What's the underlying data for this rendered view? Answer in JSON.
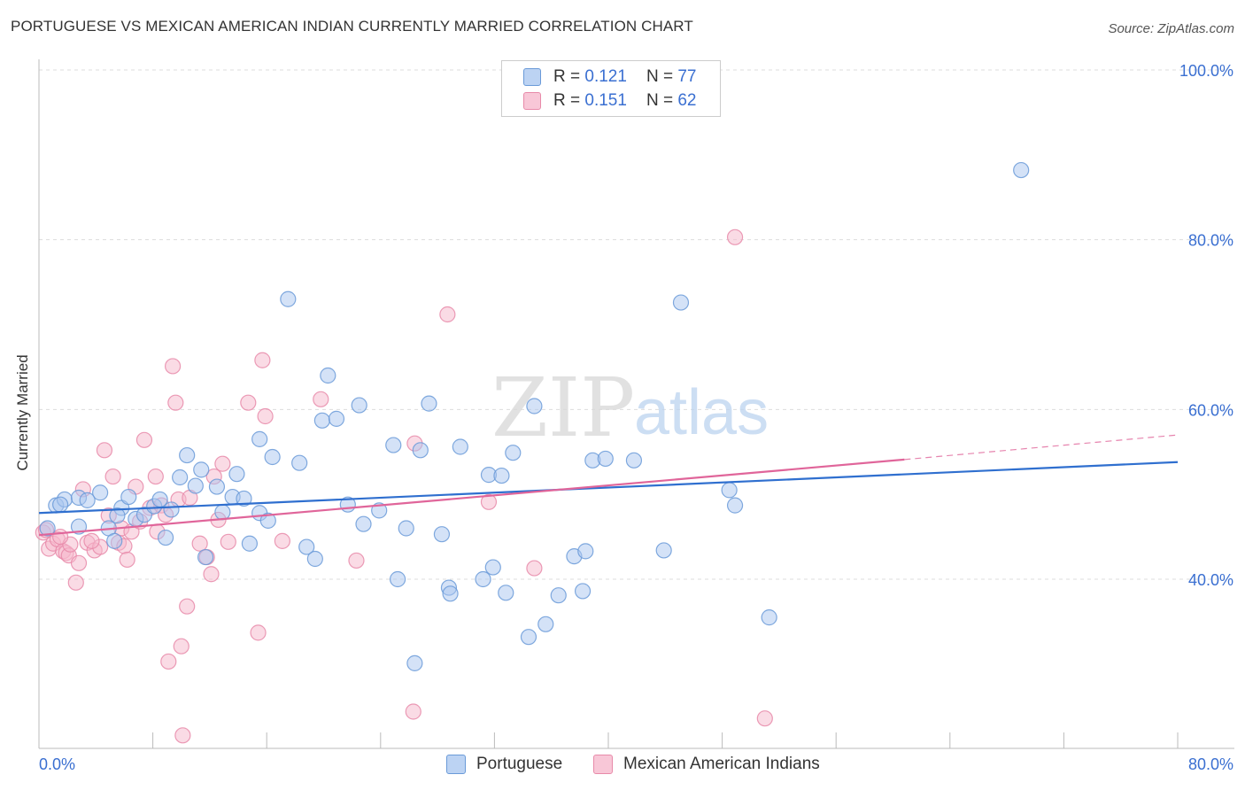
{
  "title": "PORTUGUESE VS MEXICAN AMERICAN INDIAN CURRENTLY MARRIED CORRELATION CHART",
  "source": "Source: ZipAtlas.com",
  "watermark": {
    "zip": "ZIP",
    "atlas": "atlas"
  },
  "legend": {
    "r_label": "R =",
    "n_label": "N =",
    "items": [
      {
        "r": "0.121",
        "n": "77"
      },
      {
        "r": "0.151",
        "n": "62"
      }
    ]
  },
  "colors": {
    "blue_fill": "#a9c6f0",
    "blue_stroke": "#6a9ad8",
    "blue_line": "#2f6fcf",
    "pink_fill": "#f6b8cc",
    "pink_stroke": "#e88aa9",
    "pink_line": "#e0659a",
    "tick_label": "#3a6fd1",
    "grid": "#dddddd"
  },
  "chart_data": {
    "type": "scatter",
    "title": "PORTUGUESE VS MEXICAN AMERICAN INDIAN CURRENTLY MARRIED CORRELATION CHART",
    "xlabel": "",
    "ylabel": "Currently Married",
    "xlim": [
      0,
      80
    ],
    "ylim": [
      20,
      100
    ],
    "x_tick_labels": [
      "0.0%",
      "80.0%"
    ],
    "y_ticks": [
      40,
      60,
      80,
      100
    ],
    "y_tick_labels": [
      "40.0%",
      "60.0%",
      "80.0%",
      "100.0%"
    ],
    "grid": true,
    "legend_position": "top-center",
    "series": [
      {
        "name": "Portuguese",
        "r": 0.121,
        "n": 77,
        "trend": {
          "x": [
            0,
            80
          ],
          "y": [
            47.8,
            53.8
          ]
        },
        "points": [
          [
            0.6,
            46
          ],
          [
            1.2,
            48.7
          ],
          [
            1.8,
            49.4
          ],
          [
            2.8,
            49.6
          ],
          [
            4.3,
            50.2
          ],
          [
            3.4,
            49.3
          ],
          [
            2.8,
            46.2
          ],
          [
            4.9,
            46
          ],
          [
            5.3,
            44.5
          ],
          [
            5.8,
            48.4
          ],
          [
            6.3,
            49.7
          ],
          [
            6.8,
            47.1
          ],
          [
            7.4,
            47.6
          ],
          [
            8.1,
            48.6
          ],
          [
            8.5,
            49.4
          ],
          [
            8.9,
            44.9
          ],
          [
            9.3,
            48.2
          ],
          [
            9.9,
            52
          ],
          [
            10.4,
            54.6
          ],
          [
            11,
            51
          ],
          [
            11.4,
            52.9
          ],
          [
            11.7,
            42.6
          ],
          [
            12.5,
            50.9
          ],
          [
            12.9,
            47.9
          ],
          [
            13.6,
            49.7
          ],
          [
            13.9,
            52.4
          ],
          [
            14.4,
            49.5
          ],
          [
            14.8,
            44.2
          ],
          [
            15.5,
            47.8
          ],
          [
            16.1,
            46.9
          ],
          [
            15.5,
            56.5
          ],
          [
            16.4,
            54.4
          ],
          [
            17.5,
            73
          ],
          [
            18.3,
            53.7
          ],
          [
            18.8,
            43.8
          ],
          [
            19.4,
            42.4
          ],
          [
            19.9,
            58.7
          ],
          [
            20.3,
            64
          ],
          [
            20.9,
            58.9
          ],
          [
            21.7,
            48.8
          ],
          [
            22.5,
            60.5
          ],
          [
            22.8,
            46.5
          ],
          [
            23.9,
            48.1
          ],
          [
            24.9,
            55.8
          ],
          [
            25.2,
            40
          ],
          [
            25.8,
            46
          ],
          [
            26.8,
            55.2
          ],
          [
            27.4,
            60.7
          ],
          [
            28.3,
            45.3
          ],
          [
            28.8,
            39
          ],
          [
            28.9,
            38.3
          ],
          [
            29.6,
            55.6
          ],
          [
            31.2,
            40
          ],
          [
            31.6,
            52.3
          ],
          [
            31.9,
            41.4
          ],
          [
            32.5,
            52.2
          ],
          [
            32.8,
            38.4
          ],
          [
            33.3,
            54.9
          ],
          [
            34.4,
            33.2
          ],
          [
            34.8,
            60.4
          ],
          [
            35.6,
            34.7
          ],
          [
            36.5,
            38.1
          ],
          [
            37.6,
            42.7
          ],
          [
            38.2,
            38.6
          ],
          [
            38.4,
            43.3
          ],
          [
            38.9,
            54
          ],
          [
            39.8,
            54.2
          ],
          [
            41.8,
            54
          ],
          [
            43.9,
            43.4
          ],
          [
            45.1,
            72.6
          ],
          [
            48.5,
            50.5
          ],
          [
            48.9,
            48.7
          ],
          [
            51.3,
            35.5
          ],
          [
            69,
            88.2
          ],
          [
            26.4,
            30.1
          ],
          [
            5.5,
            47.5
          ],
          [
            1.5,
            48.8
          ]
        ]
      },
      {
        "name": "Mexican American Indians",
        "r": 0.151,
        "n": 62,
        "trend": {
          "x": [
            0,
            60.8
          ],
          "y": [
            45.2,
            54.1
          ]
        },
        "trend_dashed": {
          "x": [
            60.8,
            80
          ],
          "y": [
            54.1,
            57
          ]
        },
        "points": [
          [
            0.3,
            45.5
          ],
          [
            0.7,
            43.6
          ],
          [
            1,
            44.2
          ],
          [
            1.3,
            44.7
          ],
          [
            1.7,
            43.3
          ],
          [
            1.9,
            43.1
          ],
          [
            2.1,
            42.8
          ],
          [
            2.6,
            39.6
          ],
          [
            2.8,
            41.9
          ],
          [
            3.1,
            50.6
          ],
          [
            3.4,
            44.3
          ],
          [
            3.9,
            43.4
          ],
          [
            4.3,
            43.8
          ],
          [
            4.6,
            55.2
          ],
          [
            4.9,
            47.5
          ],
          [
            5.2,
            52.1
          ],
          [
            5.6,
            44.3
          ],
          [
            5.8,
            46
          ],
          [
            6,
            43.9
          ],
          [
            6.2,
            42.3
          ],
          [
            6.5,
            45.6
          ],
          [
            6.8,
            50.9
          ],
          [
            7.1,
            46.8
          ],
          [
            7.4,
            56.4
          ],
          [
            7.8,
            48.4
          ],
          [
            8.2,
            52.1
          ],
          [
            8.3,
            45.6
          ],
          [
            8.6,
            48.7
          ],
          [
            8.9,
            47.6
          ],
          [
            9.1,
            30.3
          ],
          [
            9.4,
            65.1
          ],
          [
            9.6,
            60.8
          ],
          [
            9.8,
            49.4
          ],
          [
            10,
            32.1
          ],
          [
            10.1,
            21.6
          ],
          [
            10.4,
            36.8
          ],
          [
            10.6,
            49.6
          ],
          [
            11.3,
            44.2
          ],
          [
            11.8,
            42.6
          ],
          [
            12.1,
            40.6
          ],
          [
            12.3,
            52.1
          ],
          [
            12.6,
            47
          ],
          [
            12.9,
            53.6
          ],
          [
            13.3,
            44.4
          ],
          [
            14.7,
            60.8
          ],
          [
            15.4,
            33.7
          ],
          [
            15.7,
            65.8
          ],
          [
            15.9,
            59.2
          ],
          [
            17.1,
            44.5
          ],
          [
            19.8,
            61.2
          ],
          [
            22.3,
            42.2
          ],
          [
            26.4,
            56
          ],
          [
            26.3,
            24.4
          ],
          [
            28.7,
            71.2
          ],
          [
            31.6,
            49.1
          ],
          [
            34.8,
            41.3
          ],
          [
            48.9,
            80.3
          ],
          [
            51,
            23.6
          ],
          [
            2.2,
            44.1
          ],
          [
            1.5,
            45
          ],
          [
            0.5,
            45.8
          ],
          [
            3.7,
            44.5
          ]
        ]
      }
    ]
  }
}
